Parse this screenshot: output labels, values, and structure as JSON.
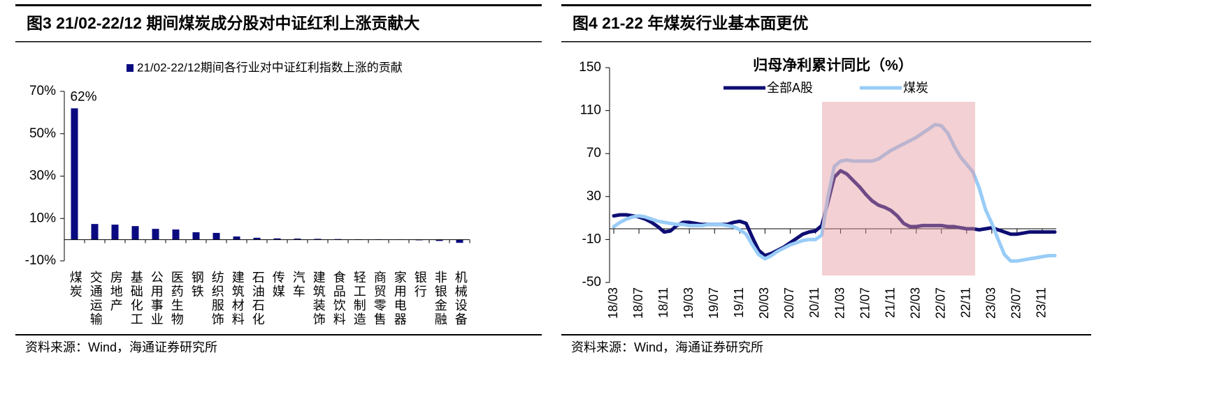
{
  "chart_data": [
    {
      "type": "bar",
      "title": "图3  21/02-22/12 期间煤炭成分股对中证红利上涨贡献大",
      "source": "资料来源：Wind，海通证券研究所",
      "categories": [
        "煤炭",
        "交通运输",
        "房地产",
        "基础化工",
        "公用事业",
        "医药生物",
        "钢铁",
        "纺织服饰",
        "建筑材料",
        "石油石化",
        "传媒",
        "汽车",
        "建筑装饰",
        "食品饮料",
        "轻工制造",
        "商贸零售",
        "家用电器",
        "银行",
        "非银金融",
        "机械设备"
      ],
      "series": [
        {
          "name": "21/02-22/12期间各行业对中证红利指数上涨的贡献",
          "color": "#0a0a80",
          "values": [
            62,
            7.4,
            7.1,
            6.4,
            5.1,
            4.8,
            3.5,
            3.2,
            1.5,
            0.9,
            0.6,
            0.5,
            0.4,
            0.3,
            0.2,
            0.2,
            0.1,
            -0.3,
            -0.6,
            -1.5
          ],
          "value_labels": [
            "62%",
            null,
            null,
            null,
            null,
            null,
            null,
            null,
            null,
            null,
            null,
            null,
            null,
            null,
            null,
            null,
            null,
            null,
            null,
            null
          ]
        }
      ],
      "ylim": [
        -10,
        70
      ],
      "yticks": [
        {
          "value": -10,
          "label": "-10%"
        },
        {
          "value": 10,
          "label": "10%"
        },
        {
          "value": 30,
          "label": "30%"
        },
        {
          "value": 50,
          "label": "50%"
        },
        {
          "value": 70,
          "label": "70%"
        }
      ]
    },
    {
      "type": "line",
      "title": "图4  21-22 年煤炭行业基本面更优",
      "subtitle": "归母净利累计同比（%）",
      "source": "资料来源：Wind，海通证券研究所",
      "categories": [
        "18/03",
        null,
        null,
        null,
        "18/07",
        null,
        null,
        null,
        "18/11",
        null,
        null,
        null,
        "19/03",
        null,
        null,
        null,
        "19/07",
        null,
        null,
        null,
        "19/11",
        null,
        null,
        null,
        "20/03",
        null,
        null,
        null,
        "20/07",
        null,
        null,
        null,
        "20/11",
        null,
        null,
        null,
        "21/03",
        null,
        null,
        null,
        "21/07",
        null,
        null,
        null,
        "21/11",
        null,
        null,
        null,
        "22/03",
        null,
        null,
        null,
        "22/07",
        null,
        null,
        null,
        "22/11",
        null,
        null,
        null,
        "23/03",
        null,
        null,
        null,
        "23/07",
        null,
        null,
        null,
        "23/11",
        null,
        null
      ],
      "series": [
        {
          "name": "全部A股",
          "color": "#0d0d73",
          "values": [
            12,
            13,
            13,
            12,
            11,
            9,
            6,
            2,
            -3,
            -2,
            3,
            6,
            6,
            5,
            4,
            4,
            4,
            4,
            4,
            6,
            7,
            5,
            -8,
            -20,
            -25,
            -23,
            -20,
            -17,
            -13,
            -9,
            -5,
            -3,
            -2,
            3,
            25,
            48,
            54,
            51,
            45,
            39,
            32,
            26,
            22,
            20,
            17,
            12,
            5,
            2,
            2,
            3,
            3,
            3,
            3,
            2,
            2,
            1,
            0,
            0,
            -1,
            0,
            1,
            -1,
            -3,
            -5,
            -5,
            -4,
            -3,
            -3,
            -3,
            -3,
            -3
          ]
        },
        {
          "name": "煤炭",
          "color": "#99ccf8",
          "values": [
            2,
            6,
            9,
            11,
            12,
            11,
            9,
            7,
            6,
            5,
            4,
            4,
            3,
            3,
            3,
            4,
            4,
            4,
            3,
            2,
            -1,
            -5,
            -15,
            -24,
            -28,
            -25,
            -21,
            -18,
            -15,
            -13,
            -11,
            -10,
            -10,
            -6,
            30,
            58,
            63,
            64,
            63,
            63,
            63,
            63,
            65,
            69,
            73,
            76,
            79,
            82,
            85,
            89,
            93,
            97,
            96,
            89,
            77,
            67,
            60,
            53,
            38,
            18,
            5,
            -10,
            -24,
            -30,
            -30,
            -29,
            -28,
            -27,
            -26,
            -25,
            -25
          ]
        }
      ],
      "ylim": [
        -50,
        150
      ],
      "yticks": [
        -50,
        -10,
        30,
        70,
        110,
        150
      ]
    }
  ]
}
